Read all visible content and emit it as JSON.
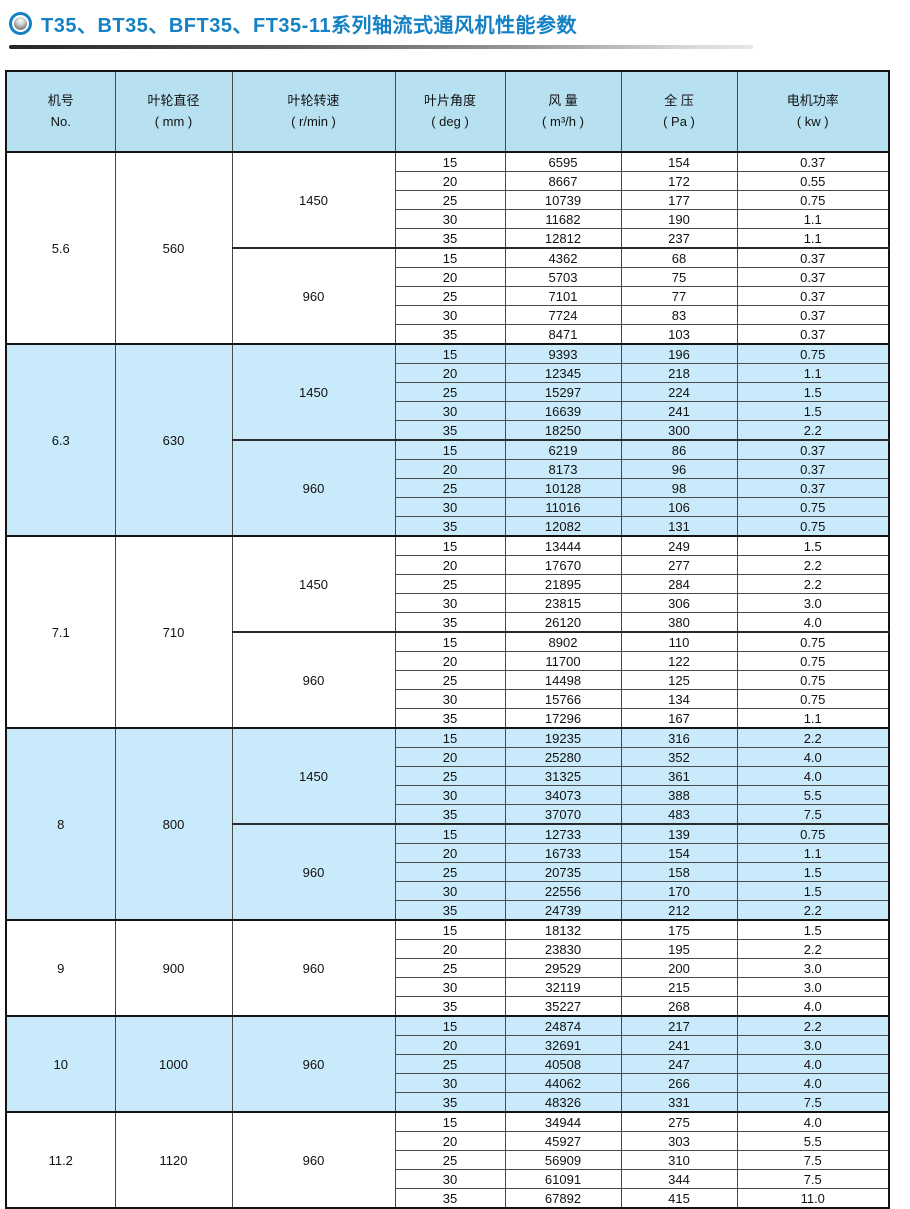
{
  "page": {
    "title": "T35、BT35、BFT35、FT35-11系列轴流式通风机性能参数"
  },
  "colors": {
    "title_blue": "#1581c5",
    "header_bg": "#b7e1f1",
    "shaded_group_bg": "#c9eafa",
    "border_dark": "#141414",
    "border_inner": "#4a4a4a"
  },
  "icons": {
    "title_bullet": "ring-sphere-bullet-icon"
  },
  "table": {
    "columns": [
      {
        "key": "fan-no",
        "line1": "机号",
        "line2": "No."
      },
      {
        "key": "impeller-diameter",
        "line1": "叶轮直径",
        "line2": "( mm )"
      },
      {
        "key": "impeller-speed",
        "line1": "叶轮转速",
        "line2": "( r/min )"
      },
      {
        "key": "blade-angle",
        "line1": "叶片角度",
        "line2": "( deg )"
      },
      {
        "key": "air-flow",
        "line1": "风 量",
        "line2": "( m³/h )"
      },
      {
        "key": "total-pressure",
        "line1": "全 压",
        "line2": "( Pa )"
      },
      {
        "key": "motor-power",
        "line1": "电机功率",
        "line2": "( kw )"
      }
    ],
    "groups": [
      {
        "no": "5.6",
        "diameter": "560",
        "shaded": false,
        "sections": [
          {
            "speed": "1450",
            "rows": [
              {
                "angle": "15",
                "flow": "6595",
                "pressure": "154",
                "power": "0.37"
              },
              {
                "angle": "20",
                "flow": "8667",
                "pressure": "172",
                "power": "0.55"
              },
              {
                "angle": "25",
                "flow": "10739",
                "pressure": "177",
                "power": "0.75"
              },
              {
                "angle": "30",
                "flow": "11682",
                "pressure": "190",
                "power": "1.1"
              },
              {
                "angle": "35",
                "flow": "12812",
                "pressure": "237",
                "power": "1.1"
              }
            ]
          },
          {
            "speed": "960",
            "rows": [
              {
                "angle": "15",
                "flow": "4362",
                "pressure": "68",
                "power": "0.37"
              },
              {
                "angle": "20",
                "flow": "5703",
                "pressure": "75",
                "power": "0.37"
              },
              {
                "angle": "25",
                "flow": "7101",
                "pressure": "77",
                "power": "0.37"
              },
              {
                "angle": "30",
                "flow": "7724",
                "pressure": "83",
                "power": "0.37"
              },
              {
                "angle": "35",
                "flow": "8471",
                "pressure": "103",
                "power": "0.37"
              }
            ]
          }
        ]
      },
      {
        "no": "6.3",
        "diameter": "630",
        "shaded": true,
        "sections": [
          {
            "speed": "1450",
            "rows": [
              {
                "angle": "15",
                "flow": "9393",
                "pressure": "196",
                "power": "0.75"
              },
              {
                "angle": "20",
                "flow": "12345",
                "pressure": "218",
                "power": "1.1"
              },
              {
                "angle": "25",
                "flow": "15297",
                "pressure": "224",
                "power": "1.5"
              },
              {
                "angle": "30",
                "flow": "16639",
                "pressure": "241",
                "power": "1.5"
              },
              {
                "angle": "35",
                "flow": "18250",
                "pressure": "300",
                "power": "2.2"
              }
            ]
          },
          {
            "speed": "960",
            "rows": [
              {
                "angle": "15",
                "flow": "6219",
                "pressure": "86",
                "power": "0.37"
              },
              {
                "angle": "20",
                "flow": "8173",
                "pressure": "96",
                "power": "0.37"
              },
              {
                "angle": "25",
                "flow": "10128",
                "pressure": "98",
                "power": "0.37"
              },
              {
                "angle": "30",
                "flow": "11016",
                "pressure": "106",
                "power": "0.75"
              },
              {
                "angle": "35",
                "flow": "12082",
                "pressure": "131",
                "power": "0.75"
              }
            ]
          }
        ]
      },
      {
        "no": "7.1",
        "diameter": "710",
        "shaded": false,
        "sections": [
          {
            "speed": "1450",
            "rows": [
              {
                "angle": "15",
                "flow": "13444",
                "pressure": "249",
                "power": "1.5"
              },
              {
                "angle": "20",
                "flow": "17670",
                "pressure": "277",
                "power": "2.2"
              },
              {
                "angle": "25",
                "flow": "21895",
                "pressure": "284",
                "power": "2.2"
              },
              {
                "angle": "30",
                "flow": "23815",
                "pressure": "306",
                "power": "3.0"
              },
              {
                "angle": "35",
                "flow": "26120",
                "pressure": "380",
                "power": "4.0"
              }
            ]
          },
          {
            "speed": "960",
            "rows": [
              {
                "angle": "15",
                "flow": "8902",
                "pressure": "110",
                "power": "0.75"
              },
              {
                "angle": "20",
                "flow": "11700",
                "pressure": "122",
                "power": "0.75"
              },
              {
                "angle": "25",
                "flow": "14498",
                "pressure": "125",
                "power": "0.75"
              },
              {
                "angle": "30",
                "flow": "15766",
                "pressure": "134",
                "power": "0.75"
              },
              {
                "angle": "35",
                "flow": "17296",
                "pressure": "167",
                "power": "1.1"
              }
            ]
          }
        ]
      },
      {
        "no": "8",
        "diameter": "800",
        "shaded": true,
        "sections": [
          {
            "speed": "1450",
            "rows": [
              {
                "angle": "15",
                "flow": "19235",
                "pressure": "316",
                "power": "2.2"
              },
              {
                "angle": "20",
                "flow": "25280",
                "pressure": "352",
                "power": "4.0"
              },
              {
                "angle": "25",
                "flow": "31325",
                "pressure": "361",
                "power": "4.0"
              },
              {
                "angle": "30",
                "flow": "34073",
                "pressure": "388",
                "power": "5.5"
              },
              {
                "angle": "35",
                "flow": "37070",
                "pressure": "483",
                "power": "7.5"
              }
            ]
          },
          {
            "speed": "960",
            "rows": [
              {
                "angle": "15",
                "flow": "12733",
                "pressure": "139",
                "power": "0.75"
              },
              {
                "angle": "20",
                "flow": "16733",
                "pressure": "154",
                "power": "1.1"
              },
              {
                "angle": "25",
                "flow": "20735",
                "pressure": "158",
                "power": "1.5"
              },
              {
                "angle": "30",
                "flow": "22556",
                "pressure": "170",
                "power": "1.5"
              },
              {
                "angle": "35",
                "flow": "24739",
                "pressure": "212",
                "power": "2.2"
              }
            ]
          }
        ]
      },
      {
        "no": "9",
        "diameter": "900",
        "shaded": false,
        "sections": [
          {
            "speed": "960",
            "rows": [
              {
                "angle": "15",
                "flow": "18132",
                "pressure": "175",
                "power": "1.5"
              },
              {
                "angle": "20",
                "flow": "23830",
                "pressure": "195",
                "power": "2.2"
              },
              {
                "angle": "25",
                "flow": "29529",
                "pressure": "200",
                "power": "3.0"
              },
              {
                "angle": "30",
                "flow": "32119",
                "pressure": "215",
                "power": "3.0"
              },
              {
                "angle": "35",
                "flow": "35227",
                "pressure": "268",
                "power": "4.0"
              }
            ]
          }
        ]
      },
      {
        "no": "10",
        "diameter": "1000",
        "shaded": true,
        "sections": [
          {
            "speed": "960",
            "rows": [
              {
                "angle": "15",
                "flow": "24874",
                "pressure": "217",
                "power": "2.2"
              },
              {
                "angle": "20",
                "flow": "32691",
                "pressure": "241",
                "power": "3.0"
              },
              {
                "angle": "25",
                "flow": "40508",
                "pressure": "247",
                "power": "4.0"
              },
              {
                "angle": "30",
                "flow": "44062",
                "pressure": "266",
                "power": "4.0"
              },
              {
                "angle": "35",
                "flow": "48326",
                "pressure": "331",
                "power": "7.5"
              }
            ]
          }
        ]
      },
      {
        "no": "11.2",
        "diameter": "1120",
        "shaded": false,
        "sections": [
          {
            "speed": "960",
            "rows": [
              {
                "angle": "15",
                "flow": "34944",
                "pressure": "275",
                "power": "4.0"
              },
              {
                "angle": "20",
                "flow": "45927",
                "pressure": "303",
                "power": "5.5"
              },
              {
                "angle": "25",
                "flow": "56909",
                "pressure": "310",
                "power": "7.5"
              },
              {
                "angle": "30",
                "flow": "61091",
                "pressure": "344",
                "power": "7.5"
              },
              {
                "angle": "35",
                "flow": "67892",
                "pressure": "415",
                "power": "11.0"
              }
            ]
          }
        ]
      }
    ]
  }
}
